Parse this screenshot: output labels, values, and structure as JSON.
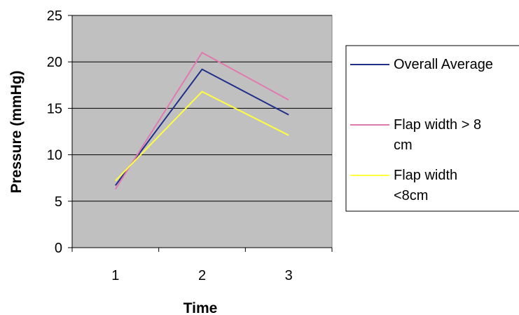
{
  "chart_data": {
    "type": "line",
    "xlabel": "Time",
    "ylabel": "Pressure (mmHg)",
    "categories": [
      "1",
      "2",
      "3"
    ],
    "ylim": [
      0,
      25
    ],
    "yticks": [
      "0",
      "5",
      "10",
      "15",
      "20",
      "25"
    ],
    "grid": true,
    "legend": "right",
    "plot_background": "#c0c0c0",
    "series": [
      {
        "name": "Overall Average",
        "color": "#1f2f8a",
        "values": [
          6.7,
          19.2,
          14.3
        ]
      },
      {
        "name": "Flap width > 8 cm",
        "color": "#e07ab0",
        "values": [
          6.3,
          21.0,
          15.9
        ]
      },
      {
        "name": "Flap width <8cm",
        "color": "#ffff40",
        "values": [
          7.2,
          16.8,
          12.1
        ]
      }
    ],
    "legend_lines": [
      [
        "Overall Average"
      ],
      [
        "Flap width > 8",
        "cm"
      ],
      [
        "Flap width",
        "<8cm"
      ]
    ]
  }
}
